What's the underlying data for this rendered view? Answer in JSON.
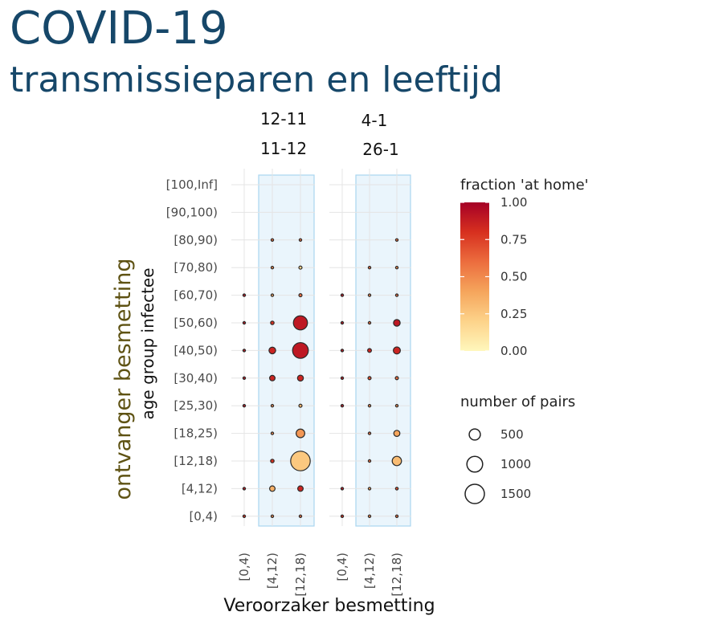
{
  "header": {
    "title": "COVID-19",
    "subtitle": "transmissieparen en leeftijd"
  },
  "chart_data": {
    "type": "scatter",
    "xlabel": "Veroorzaker besmetting",
    "ylabel": "ontvanger besmetting",
    "ylabel_secondary": "age group infectee",
    "x_categories": [
      "[0,4)",
      "[4,12)",
      "[12,18)"
    ],
    "y_categories": [
      "[0,4)",
      "[4,12)",
      "[12,18)",
      "[18,25)",
      "[25,30)",
      "[30,40)",
      "[40,50)",
      "[50,60)",
      "[60,70)",
      "[70,80)",
      "[80,90)",
      "[90,100)",
      "[100,Inf]"
    ],
    "highlight_columns": [
      "[4,12)",
      "[12,18)"
    ],
    "panels": [
      {
        "period_label_1": "12-11",
        "period_label_2": "11-12",
        "points": [
          {
            "x": "[0,4)",
            "y": "[0,4)",
            "pairs": 10,
            "fraction_at_home": 0.8
          },
          {
            "x": "[4,12)",
            "y": "[0,4)",
            "pairs": 10,
            "fraction_at_home": 0.5
          },
          {
            "x": "[12,18)",
            "y": "[0,4)",
            "pairs": 10,
            "fraction_at_home": 0.6
          },
          {
            "x": "[0,4)",
            "y": "[4,12)",
            "pairs": 10,
            "fraction_at_home": 0.9
          },
          {
            "x": "[4,12)",
            "y": "[4,12)",
            "pairs": 120,
            "fraction_at_home": 0.35
          },
          {
            "x": "[12,18)",
            "y": "[4,12)",
            "pairs": 120,
            "fraction_at_home": 0.85
          },
          {
            "x": "[4,12)",
            "y": "[12,18)",
            "pairs": 50,
            "fraction_at_home": 0.8
          },
          {
            "x": "[12,18)",
            "y": "[12,18)",
            "pairs": 1550,
            "fraction_at_home": 0.25
          },
          {
            "x": "[4,12)",
            "y": "[18,25)",
            "pairs": 15,
            "fraction_at_home": 0.5
          },
          {
            "x": "[12,18)",
            "y": "[18,25)",
            "pairs": 300,
            "fraction_at_home": 0.45
          },
          {
            "x": "[0,4)",
            "y": "[25,30)",
            "pairs": 10,
            "fraction_at_home": 0.9
          },
          {
            "x": "[4,12)",
            "y": "[25,30)",
            "pairs": 10,
            "fraction_at_home": 0.5
          },
          {
            "x": "[12,18)",
            "y": "[25,30)",
            "pairs": 40,
            "fraction_at_home": 0.35
          },
          {
            "x": "[0,4)",
            "y": "[30,40)",
            "pairs": 10,
            "fraction_at_home": 0.9
          },
          {
            "x": "[4,12)",
            "y": "[30,40)",
            "pairs": 120,
            "fraction_at_home": 0.85
          },
          {
            "x": "[12,18)",
            "y": "[30,40)",
            "pairs": 140,
            "fraction_at_home": 0.85
          },
          {
            "x": "[0,4)",
            "y": "[40,50)",
            "pairs": 10,
            "fraction_at_home": 0.9
          },
          {
            "x": "[4,12)",
            "y": "[40,50)",
            "pairs": 180,
            "fraction_at_home": 0.85
          },
          {
            "x": "[12,18)",
            "y": "[40,50)",
            "pairs": 1000,
            "fraction_at_home": 0.9
          },
          {
            "x": "[0,4)",
            "y": "[50,60)",
            "pairs": 10,
            "fraction_at_home": 0.9
          },
          {
            "x": "[4,12)",
            "y": "[50,60)",
            "pairs": 50,
            "fraction_at_home": 0.8
          },
          {
            "x": "[12,18)",
            "y": "[50,60)",
            "pairs": 800,
            "fraction_at_home": 0.9
          },
          {
            "x": "[0,4)",
            "y": "[60,70)",
            "pairs": 10,
            "fraction_at_home": 0.9
          },
          {
            "x": "[4,12)",
            "y": "[60,70)",
            "pairs": 20,
            "fraction_at_home": 0.4
          },
          {
            "x": "[12,18)",
            "y": "[60,70)",
            "pairs": 40,
            "fraction_at_home": 0.6
          },
          {
            "x": "[4,12)",
            "y": "[70,80)",
            "pairs": 10,
            "fraction_at_home": 0.5
          },
          {
            "x": "[12,18)",
            "y": "[70,80)",
            "pairs": 40,
            "fraction_at_home": 0.2
          },
          {
            "x": "[4,12)",
            "y": "[80,90)",
            "pairs": 10,
            "fraction_at_home": 0.6
          },
          {
            "x": "[12,18)",
            "y": "[80,90)",
            "pairs": 10,
            "fraction_at_home": 0.6
          }
        ]
      },
      {
        "period_label_1": "4-1",
        "period_label_2": "26-1",
        "points": [
          {
            "x": "[0,4)",
            "y": "[0,4)",
            "pairs": 10,
            "fraction_at_home": 0.8
          },
          {
            "x": "[4,12)",
            "y": "[0,4)",
            "pairs": 10,
            "fraction_at_home": 0.5
          },
          {
            "x": "[12,18)",
            "y": "[0,4)",
            "pairs": 10,
            "fraction_at_home": 0.6
          },
          {
            "x": "[0,4)",
            "y": "[4,12)",
            "pairs": 10,
            "fraction_at_home": 0.9
          },
          {
            "x": "[4,12)",
            "y": "[4,12)",
            "pairs": 20,
            "fraction_at_home": 0.4
          },
          {
            "x": "[12,18)",
            "y": "[4,12)",
            "pairs": 30,
            "fraction_at_home": 0.7
          },
          {
            "x": "[4,12)",
            "y": "[12,18)",
            "pairs": 15,
            "fraction_at_home": 0.6
          },
          {
            "x": "[12,18)",
            "y": "[12,18)",
            "pairs": 350,
            "fraction_at_home": 0.3
          },
          {
            "x": "[4,12)",
            "y": "[18,25)",
            "pairs": 10,
            "fraction_at_home": 0.6
          },
          {
            "x": "[12,18)",
            "y": "[18,25)",
            "pairs": 150,
            "fraction_at_home": 0.4
          },
          {
            "x": "[0,4)",
            "y": "[25,30)",
            "pairs": 10,
            "fraction_at_home": 0.9
          },
          {
            "x": "[4,12)",
            "y": "[25,30)",
            "pairs": 10,
            "fraction_at_home": 0.5
          },
          {
            "x": "[12,18)",
            "y": "[25,30)",
            "pairs": 15,
            "fraction_at_home": 0.5
          },
          {
            "x": "[0,4)",
            "y": "[30,40)",
            "pairs": 10,
            "fraction_at_home": 0.9
          },
          {
            "x": "[4,12)",
            "y": "[30,40)",
            "pairs": 40,
            "fraction_at_home": 0.7
          },
          {
            "x": "[12,18)",
            "y": "[30,40)",
            "pairs": 40,
            "fraction_at_home": 0.6
          },
          {
            "x": "[0,4)",
            "y": "[40,50)",
            "pairs": 10,
            "fraction_at_home": 0.9
          },
          {
            "x": "[4,12)",
            "y": "[40,50)",
            "pairs": 60,
            "fraction_at_home": 0.85
          },
          {
            "x": "[12,18)",
            "y": "[40,50)",
            "pairs": 200,
            "fraction_at_home": 0.85
          },
          {
            "x": "[0,4)",
            "y": "[50,60)",
            "pairs": 10,
            "fraction_at_home": 0.9
          },
          {
            "x": "[4,12)",
            "y": "[50,60)",
            "pairs": 15,
            "fraction_at_home": 0.6
          },
          {
            "x": "[12,18)",
            "y": "[50,60)",
            "pairs": 180,
            "fraction_at_home": 0.9
          },
          {
            "x": "[0,4)",
            "y": "[60,70)",
            "pairs": 10,
            "fraction_at_home": 0.9
          },
          {
            "x": "[4,12)",
            "y": "[60,70)",
            "pairs": 10,
            "fraction_at_home": 0.5
          },
          {
            "x": "[12,18)",
            "y": "[60,70)",
            "pairs": 20,
            "fraction_at_home": 0.6
          },
          {
            "x": "[4,12)",
            "y": "[70,80)",
            "pairs": 10,
            "fraction_at_home": 0.6
          },
          {
            "x": "[12,18)",
            "y": "[70,80)",
            "pairs": 10,
            "fraction_at_home": 0.5
          },
          {
            "x": "[12,18)",
            "y": "[80,90)",
            "pairs": 10,
            "fraction_at_home": 0.6
          }
        ]
      }
    ],
    "color_legend": {
      "title": "fraction 'at home'",
      "ticks": [
        "1.00",
        "0.75",
        "0.50",
        "0.25",
        "0.00"
      ],
      "range": [
        0,
        1
      ],
      "colors": [
        "#fff7bc",
        "#fdd38a",
        "#f5a55c",
        "#ec6d3e",
        "#d7301f",
        "#a50026"
      ]
    },
    "size_legend": {
      "title": "number of pairs",
      "items": [
        {
          "label": "500",
          "value": 500
        },
        {
          "label": "1000",
          "value": 1000
        },
        {
          "label": "1500",
          "value": 1500
        }
      ]
    },
    "point_stroke": "#2b2b2b",
    "highlight_fill": "#eaf5fc",
    "highlight_stroke": "#a9d6ef",
    "grid": true,
    "legend_position": "right"
  }
}
